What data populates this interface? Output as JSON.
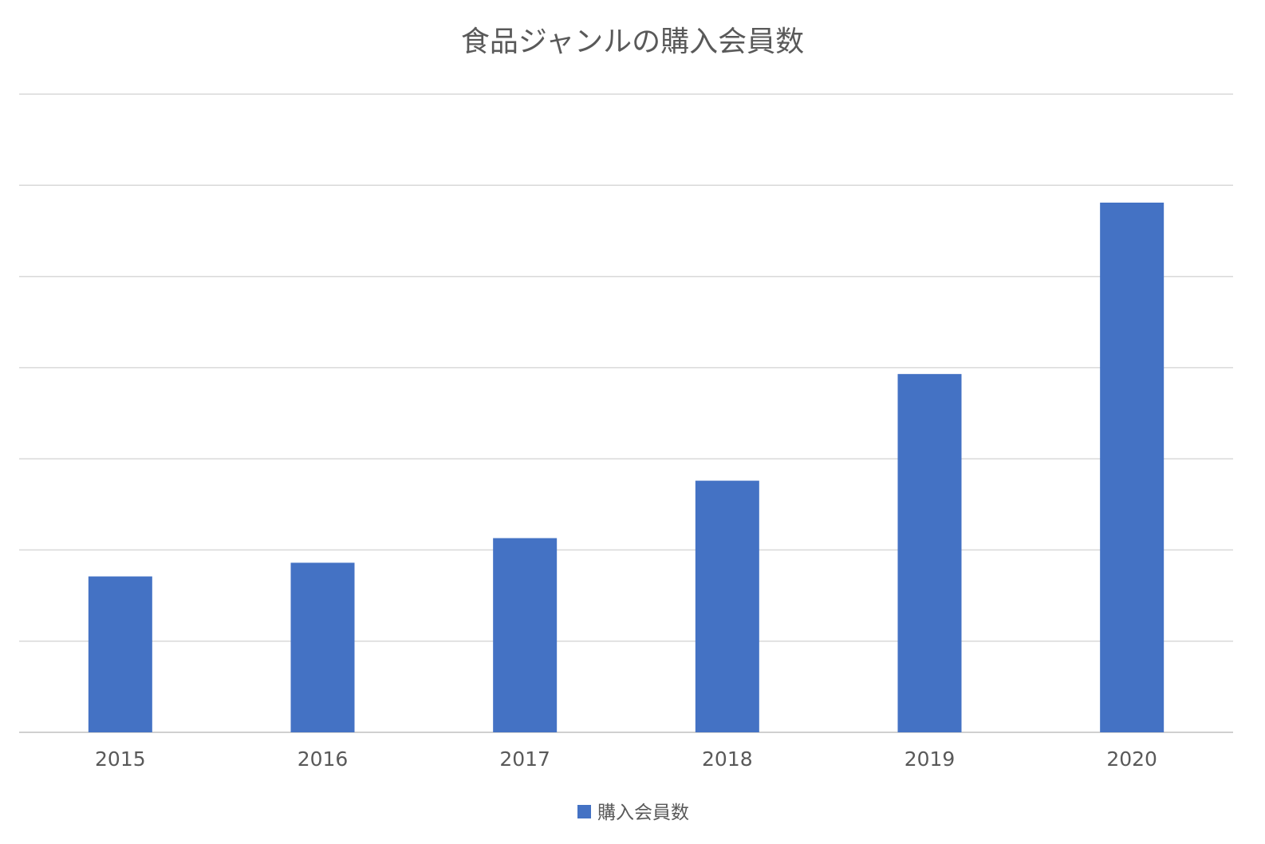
{
  "chart_data": {
    "type": "bar",
    "title": "食品ジャンルの購入会員数",
    "xlabel": "",
    "ylabel": "",
    "categories": [
      "2015",
      "2016",
      "2017",
      "2018",
      "2019",
      "2020"
    ],
    "series": [
      {
        "name": "購入会員数",
        "color": "#4472C4",
        "values": [
          1.71,
          1.86,
          2.13,
          2.76,
          3.93,
          5.81
        ]
      }
    ],
    "ylim": [
      0,
      7
    ],
    "gridlines": true,
    "y_tick_labels_visible": false,
    "legend_position": "bottom"
  }
}
